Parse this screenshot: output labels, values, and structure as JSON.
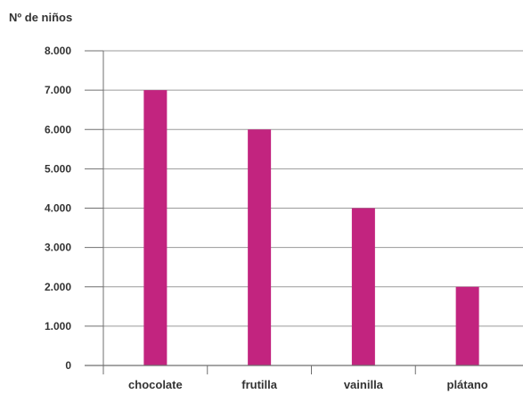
{
  "chart_data": {
    "type": "bar",
    "ylabel": "Nº de niños",
    "xlabel": "",
    "categories": [
      "chocolate",
      "frutilla",
      "vainilla",
      "plátano"
    ],
    "values": [
      7000,
      6000,
      4000,
      2000
    ],
    "ylim": [
      0,
      8000
    ],
    "yticks": [
      0,
      1000,
      2000,
      3000,
      4000,
      5000,
      6000,
      7000,
      8000
    ],
    "ytick_labels": [
      "0",
      "1.000",
      "2.000",
      "3.000",
      "4.000",
      "5.000",
      "6.000",
      "7.000",
      "8.000"
    ],
    "grid": true,
    "legend": "none",
    "colors": {
      "bar": "#C2247F",
      "grid": "#9A9A9A",
      "axis": "#6F6F6F",
      "text": "#333333"
    }
  }
}
